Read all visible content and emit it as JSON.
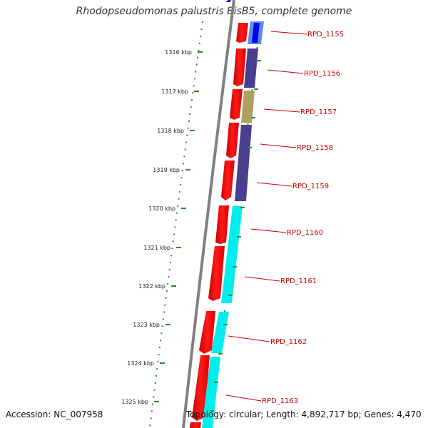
{
  "title": "Rhodopseudomonas palustris BisB5, complete genome",
  "footer": {
    "accession": "Accession: NC_007958",
    "topology": "Topology: circular; Length: 4,892,717 bp; Genes: 4,470"
  },
  "map": {
    "kbp_ticks": [
      "1316 kbp",
      "1317 kbp",
      "1318 kbp",
      "1319 kbp",
      "1320 kbp",
      "1321 kbp",
      "1322 kbp",
      "1323 kbp",
      "1324 kbp",
      "1325 kbp"
    ],
    "gene_labels": [
      "RPD_1155",
      "RPD_1156",
      "RPD_1157",
      "RPD_1158",
      "RPD_1159",
      "RPD_1160",
      "RPD_1161",
      "RPD_1162",
      "RPD_1163"
    ]
  },
  "colors": {
    "cds": "#ff0000",
    "backbone": "#808080",
    "scale": "#2a8a2a",
    "label": "#cc0000",
    "cog_blue": "#0000ee",
    "cog_lightblue": "#5a8fe0",
    "cog_purple": "#4a3f8f",
    "cog_olive": "#b0a060",
    "cog_cyan": "#00eeee"
  }
}
